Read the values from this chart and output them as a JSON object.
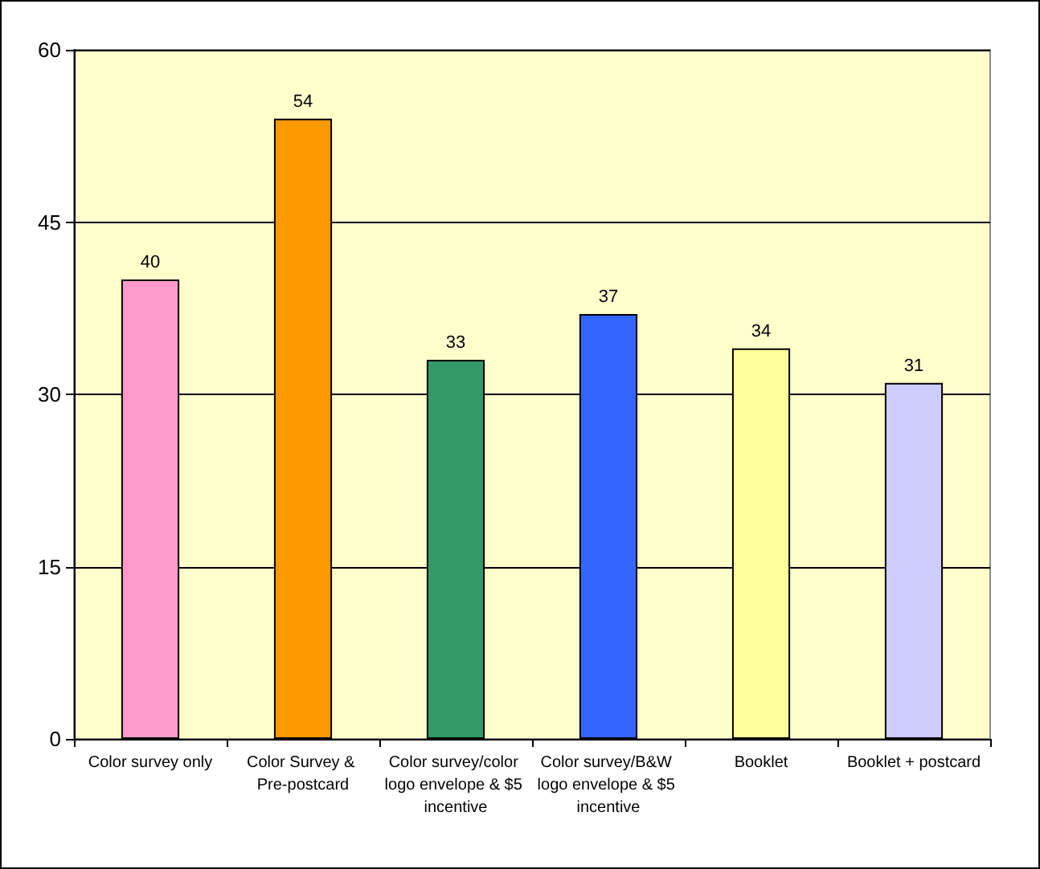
{
  "chart_data": {
    "type": "bar",
    "categories": [
      "Color survey only",
      "Color Survey & Pre-postcard",
      "Color survey/color logo envelope & $5 incentive",
      "Color survey/B&W logo envelope & $5 incentive",
      "Booklet",
      "Booklet + postcard"
    ],
    "values": [
      40,
      54,
      33,
      37,
      34,
      31
    ],
    "colors": [
      "#ff99cc",
      "#ff9900",
      "#339966",
      "#3366ff",
      "#ffff99",
      "#ccccff"
    ],
    "ylim": [
      0,
      60
    ],
    "yticks": [
      0,
      15,
      30,
      45,
      60
    ],
    "grid": "y",
    "data_labels": true
  }
}
